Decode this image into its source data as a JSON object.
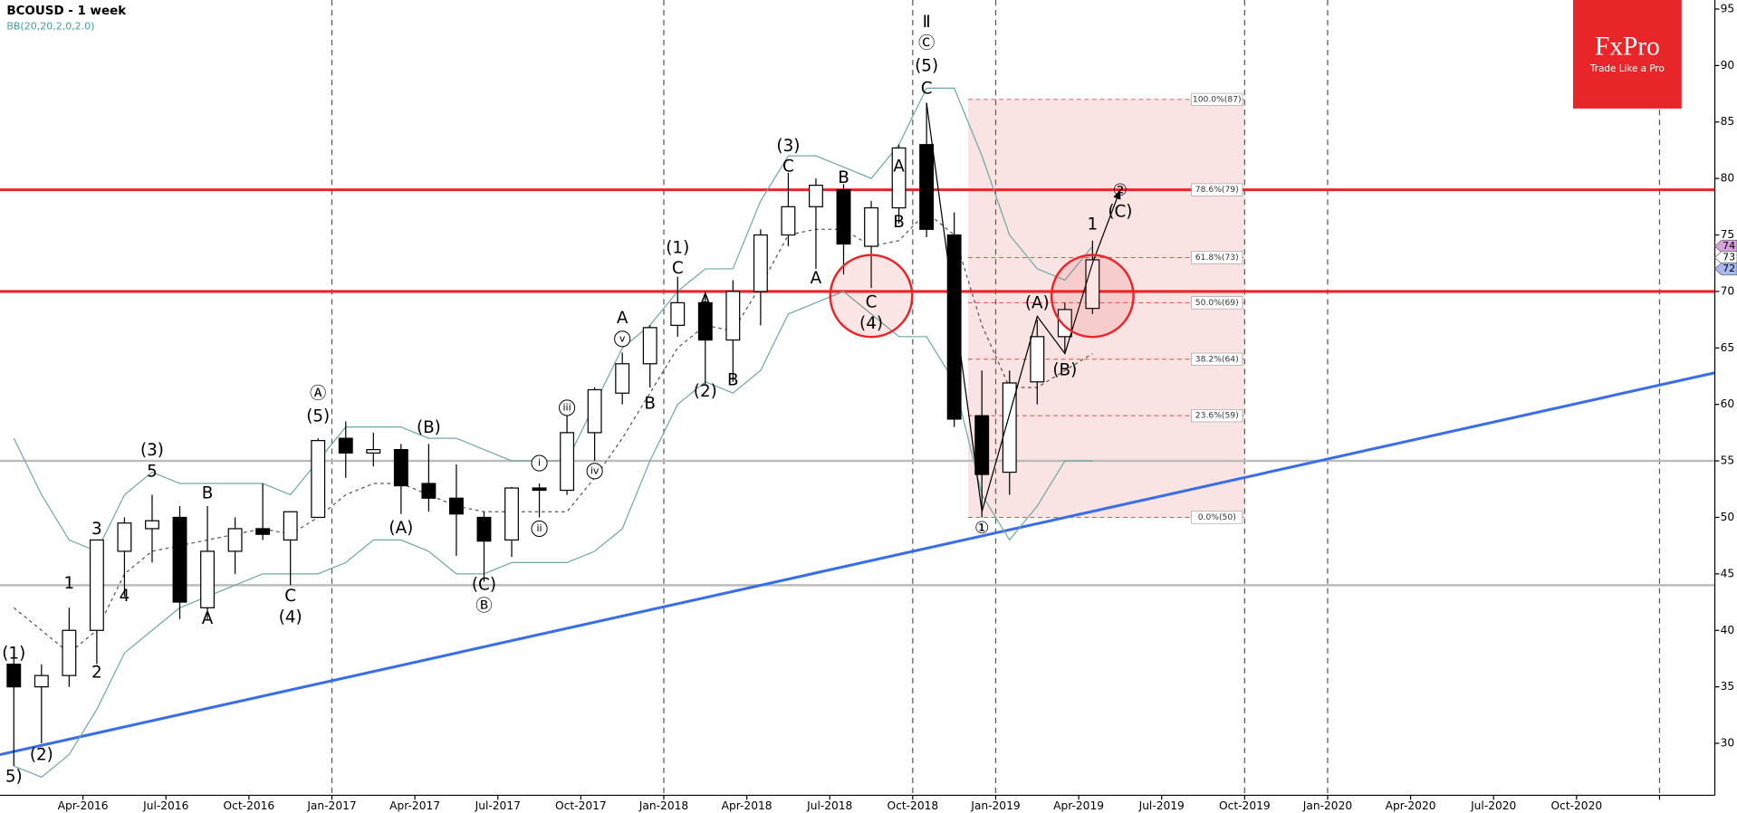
{
  "chart_data": {
    "type": "candlestick",
    "title": "BCOUSD  - 1 week",
    "x": [
      "2016-01",
      "2016-02",
      "2016-03",
      "2016-04",
      "2016-05",
      "2016-06",
      "2016-07",
      "2016-08",
      "2016-09",
      "2016-10",
      "2016-11",
      "2016-12",
      "2017-01",
      "2017-02",
      "2017-03",
      "2017-04",
      "2017-05",
      "2017-06",
      "2017-07",
      "2017-08",
      "2017-09",
      "2017-10",
      "2017-11",
      "2017-12",
      "2018-01",
      "2018-02",
      "2018-03",
      "2018-04",
      "2018-05",
      "2018-06",
      "2018-07",
      "2018-08",
      "2018-09",
      "2018-10",
      "2018-11",
      "2018-12",
      "2019-01",
      "2019-02",
      "2019-03",
      "2019-04"
    ],
    "open": [
      37,
      35,
      36,
      40,
      47,
      49,
      50,
      42,
      47,
      49,
      48,
      50,
      57,
      55.7,
      56,
      53,
      51.7,
      50,
      48,
      52.6,
      52.4,
      57.5,
      61,
      63.6,
      67,
      69,
      65.7,
      70,
      75,
      77.5,
      79,
      74,
      77.4,
      83,
      75,
      59,
      54,
      62,
      66,
      68.5
    ],
    "high": [
      38,
      37,
      42,
      48,
      50,
      52,
      51,
      51,
      50,
      53,
      50,
      57,
      58.5,
      57.5,
      56.5,
      56.5,
      54.7,
      50.5,
      52.7,
      53,
      59.5,
      61.5,
      64.6,
      67,
      71.3,
      70,
      71,
      75.5,
      80.5,
      80,
      79.5,
      78,
      83,
      86.7,
      77,
      63,
      63,
      67.5,
      69,
      74.5
    ],
    "low": [
      28,
      30,
      35,
      37,
      43,
      46,
      41,
      41,
      45,
      48,
      44,
      50,
      53.5,
      54.5,
      50.3,
      50.5,
      46.6,
      44.3,
      46.5,
      50,
      52,
      55,
      60,
      61.5,
      66,
      61.8,
      62,
      67,
      74,
      72,
      71.5,
      70.3,
      76,
      74.8,
      58,
      50,
      52,
      60,
      64.5,
      68
    ],
    "close": [
      35,
      36,
      40,
      48,
      49.5,
      49.7,
      42.5,
      47,
      49,
      48.5,
      50.5,
      56.8,
      55.7,
      56,
      52.8,
      51.7,
      50.3,
      47.9,
      52.6,
      52.4,
      57.5,
      61.3,
      63.6,
      66.8,
      69,
      65.7,
      70,
      75,
      77.5,
      79.4,
      74.2,
      77.4,
      82.7,
      75.5,
      58.7,
      53.8,
      61.9,
      66,
      68.4,
      72.8
    ],
    "bollinger": {
      "name": "BB(20,20,2,0,2.0)",
      "color": "#6fa8a6",
      "upper": [
        57,
        52,
        48,
        47,
        52,
        54,
        53,
        53,
        53,
        53,
        52,
        55,
        58,
        58,
        58,
        57,
        57,
        56,
        55,
        55,
        55,
        60,
        65,
        67,
        70,
        72,
        72,
        78,
        82,
        82,
        81,
        80,
        83,
        88,
        88,
        82,
        75,
        72,
        71,
        74
      ],
      "middle": [
        42,
        40,
        38,
        40,
        45,
        47,
        47.5,
        48,
        48.5,
        49,
        48.5,
        50,
        52,
        53,
        53,
        52,
        51,
        50.5,
        50.5,
        50.5,
        50.5,
        53.5,
        57,
        61,
        65,
        67,
        66.5,
        70.5,
        75,
        75.5,
        75.5,
        74,
        74.5,
        77,
        75,
        67,
        61.5,
        61.5,
        63,
        64.5
      ],
      "lower": [
        28,
        27,
        29,
        33,
        38,
        40,
        42,
        43,
        44,
        45,
        45,
        45,
        46,
        48,
        48,
        47,
        45,
        45,
        46,
        46,
        46,
        47,
        49,
        55,
        60,
        62,
        61,
        63,
        68,
        69,
        70,
        68,
        66,
        66,
        62,
        52,
        48,
        51,
        55,
        55
      ]
    },
    "xlim": [
      "2016-01",
      "2021-03"
    ],
    "ylim": [
      25.4,
      95.8
    ],
    "yticks": [
      30,
      35,
      40,
      45,
      50,
      55,
      60,
      65,
      70,
      75,
      80,
      85,
      90,
      95
    ],
    "xticks": [
      {
        "value": "2016-04",
        "label": "Apr-2016"
      },
      {
        "value": "2016-07",
        "label": "Jul-2016"
      },
      {
        "value": "2016-10",
        "label": "Oct-2016"
      },
      {
        "value": "2017-01",
        "label": "Jan-2017",
        "line": true
      },
      {
        "value": "2017-04",
        "label": "Apr-2017"
      },
      {
        "value": "2017-07",
        "label": "Jul-2017"
      },
      {
        "value": "2017-10",
        "label": "Oct-2017"
      },
      {
        "value": "2018-01",
        "label": "Jan-2018",
        "line": true
      },
      {
        "value": "2018-04",
        "label": "Apr-2018"
      },
      {
        "value": "2018-07",
        "label": "Jul-2018"
      },
      {
        "value": "2018-10",
        "label": "Oct-2018",
        "line": true
      },
      {
        "value": "2019-01",
        "label": "Jan-2019",
        "line": true
      },
      {
        "value": "2019-04",
        "label": "Apr-2019"
      },
      {
        "value": "2019-07",
        "label": "Jul-2019"
      },
      {
        "value": "2019-10",
        "label": "Oct-2019",
        "line": true
      },
      {
        "value": "2020-01",
        "label": "Jan-2020",
        "line": true
      },
      {
        "value": "2020-04",
        "label": "Apr-2020"
      },
      {
        "value": "2020-07",
        "label": "Jul-2020"
      },
      {
        "value": "2020-10",
        "label": "Oct-2020"
      },
      {
        "value": "2021-01",
        "label": "",
        "line": true
      }
    ],
    "horizontal_lines": [
      {
        "value": 79,
        "color": "#e8262a",
        "width": 2.5
      },
      {
        "value": 70,
        "color": "#e8262a",
        "width": 2.5
      },
      {
        "value": 55,
        "color": "#bbbbbb",
        "width": 2
      },
      {
        "value": 44,
        "color": "#bbbbbb",
        "width": 2
      }
    ],
    "trendline": {
      "color": "#3a6ee8",
      "points": [
        [
          "2016-01",
          29
        ],
        [
          "2021-03",
          62.8
        ]
      ]
    },
    "fibonacci": {
      "x0": "2018-12",
      "x1": "2019-10",
      "color": "#d9534f",
      "levels": [
        {
          "value": 87,
          "label": "100.0%(87)"
        },
        {
          "value": 79,
          "label": "78.6%(79)"
        },
        {
          "value": 73,
          "label": "61.8%(73)"
        },
        {
          "value": 69,
          "label": "50.0%(69)"
        },
        {
          "value": 64,
          "label": "38.2%(64)"
        },
        {
          "value": 59,
          "label": "23.6%(59)"
        },
        {
          "value": 50,
          "label": "0.0%(50)"
        }
      ]
    },
    "highlights": [
      {
        "x": "2018-08",
        "y": 69.6
      },
      {
        "x": "2019-04",
        "y": 69.6
      }
    ],
    "wave_path": [
      [
        "2018-10",
        86.7
      ],
      [
        "2018-12",
        50.5
      ],
      [
        "2019-02",
        67.8
      ],
      [
        "2019-03",
        64.5
      ],
      [
        "2019-04",
        72.5
      ],
      [
        "2019-05",
        79
      ]
    ],
    "price_markers": [
      {
        "value": 74,
        "color": "#d9a0e0"
      },
      {
        "value": 73,
        "color": "#ffffff"
      },
      {
        "value": 72,
        "color": "#a8b8f0"
      }
    ],
    "annotations": [
      {
        "text": "(1)",
        "x": "2016-01",
        "y": 37.9
      },
      {
        "text": "5)",
        "x": "2016-01",
        "y": 27.0
      },
      {
        "text": "(2)",
        "x": "2016-02",
        "y": 28.9
      },
      {
        "text": "1",
        "x": "2016-03",
        "y": 44.1
      },
      {
        "text": "2",
        "x": "2016-04",
        "y": 36.2
      },
      {
        "text": "3",
        "x": "2016-04",
        "y": 48.9
      },
      {
        "text": "4",
        "x": "2016-05",
        "y": 43.0
      },
      {
        "text": "(3)",
        "x": "2016-06",
        "y": 55.9
      },
      {
        "text": "5",
        "x": "2016-06",
        "y": 54.0
      },
      {
        "text": "A",
        "x": "2016-08",
        "y": 41.0
      },
      {
        "text": "B",
        "x": "2016-08",
        "y": 52.1
      },
      {
        "text": "C",
        "x": "2016-11",
        "y": 43.0
      },
      {
        "text": "(4)",
        "x": "2016-11",
        "y": 41.1
      },
      {
        "text": "Ⓐ",
        "x": "2016-12",
        "y": 60.9
      },
      {
        "text": "(5)",
        "x": "2016-12",
        "y": 58.9
      },
      {
        "text": "(A)",
        "x": "2017-03",
        "y": 49.0
      },
      {
        "text": "(B)",
        "x": "2017-04",
        "y": 57.9
      },
      {
        "text": "(C)",
        "x": "2017-06",
        "y": 44.0
      },
      {
        "text": "Ⓑ",
        "x": "2017-06",
        "y": 42.1
      },
      {
        "text": "i",
        "x": "2017-08",
        "y": 54.8,
        "circle": true
      },
      {
        "text": "ii",
        "x": "2017-08",
        "y": 49.0,
        "circle": true
      },
      {
        "text": "iii",
        "x": "2017-09",
        "y": 59.7,
        "circle": true
      },
      {
        "text": "iv",
        "x": "2017-10",
        "y": 54.1,
        "circle": true
      },
      {
        "text": "v",
        "x": "2017-11",
        "y": 65.8,
        "circle": true
      },
      {
        "text": "A",
        "x": "2017-11",
        "y": 67.6
      },
      {
        "text": "B",
        "x": "2017-12",
        "y": 60.0
      },
      {
        "text": "(1)",
        "x": "2018-01",
        "y": 73.8
      },
      {
        "text": "C",
        "x": "2018-01",
        "y": 72.0
      },
      {
        "text": "(2)",
        "x": "2018-02",
        "y": 61.1
      },
      {
        "text": "A",
        "x": "2018-02",
        "y": 69.1
      },
      {
        "text": "B",
        "x": "2018-03",
        "y": 62.1
      },
      {
        "text": "(3)",
        "x": "2018-05",
        "y": 82.8
      },
      {
        "text": "C",
        "x": "2018-05",
        "y": 81.0
      },
      {
        "text": "A",
        "x": "2018-06",
        "y": 71.1
      },
      {
        "text": "B",
        "x": "2018-07",
        "y": 80.0
      },
      {
        "text": "C",
        "x": "2018-08",
        "y": 69.0
      },
      {
        "text": "(4)",
        "x": "2018-08",
        "y": 67.1
      },
      {
        "text": "A",
        "x": "2018-09",
        "y": 81.0
      },
      {
        "text": "B",
        "x": "2018-09",
        "y": 76.1
      },
      {
        "text": "Ⅱ",
        "x": "2018-10",
        "y": 93.8
      },
      {
        "text": "Ⓒ",
        "x": "2018-10",
        "y": 91.9
      },
      {
        "text": "(5)",
        "x": "2018-10",
        "y": 89.9
      },
      {
        "text": "C",
        "x": "2018-10",
        "y": 87.9
      },
      {
        "text": "①",
        "x": "2018-12",
        "y": 49.0
      },
      {
        "text": "(A)",
        "x": "2019-02",
        "y": 68.9
      },
      {
        "text": "(B)",
        "x": "2019-03",
        "y": 63.0
      },
      {
        "text": "1",
        "x": "2019-04",
        "y": 75.9
      },
      {
        "text": "②",
        "x": "2019-05",
        "y": 78.9
      },
      {
        "text": "(C)",
        "x": "2019-05",
        "y": 77.0
      }
    ]
  },
  "logo": {
    "name": "FxPro",
    "tagline": "Trade Like a Pro"
  }
}
